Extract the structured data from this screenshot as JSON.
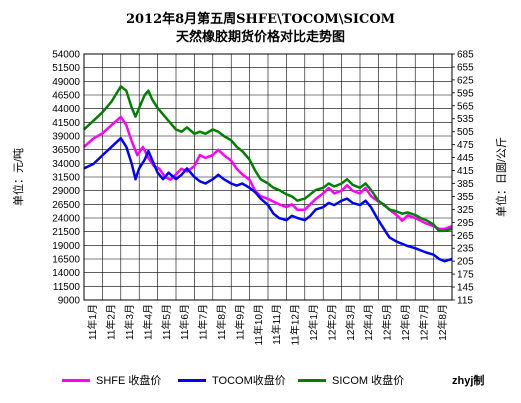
{
  "chart_data": {
    "type": "line",
    "title": "2012年8月第五周SHFE\\TOCOM\\SICOM",
    "subtitle": "天然橡胶期货价格对比走势图",
    "ylabel_left": "单位：元/吨",
    "ylabel_right": "单位：日圆/公斤",
    "ylim_left": [
      9000,
      54000
    ],
    "ylim_right": [
      115,
      685
    ],
    "yticks_left": [
      54000,
      51500,
      49000,
      46500,
      44000,
      41500,
      39000,
      36500,
      34000,
      31500,
      29000,
      26500,
      24000,
      21500,
      19000,
      16500,
      14000,
      11500,
      9000
    ],
    "yticks_right": [
      685,
      655,
      625,
      595,
      565,
      535,
      505,
      475,
      445,
      415,
      385,
      355,
      325,
      295,
      265,
      235,
      205,
      175,
      145,
      115
    ],
    "x_categories": [
      "11年1月",
      "11年2月",
      "11年3月",
      "11年4月",
      "11年5月",
      "11年6月",
      "11年7月",
      "11年8月",
      "11年9月",
      "11年10月",
      "11年11月",
      "11年12月",
      "12年1月",
      "12年2月",
      "12年3月",
      "12年4月",
      "12年5月",
      "12年6月",
      "12年7月",
      "12年8月"
    ],
    "grid": true,
    "legend_position": "bottom",
    "series": [
      {
        "name": "SHFE 收盘价",
        "color": "#ff00ff",
        "axis": "left",
        "points": [
          [
            0,
            37000
          ],
          [
            0.5,
            38500
          ],
          [
            1,
            39500
          ],
          [
            1.5,
            41000
          ],
          [
            2,
            42500
          ],
          [
            2.3,
            41000
          ],
          [
            2.6,
            38000
          ],
          [
            2.9,
            35500
          ],
          [
            3.2,
            37000
          ],
          [
            3.5,
            35000
          ],
          [
            3.8,
            33500
          ],
          [
            4.1,
            33000
          ],
          [
            4.4,
            31500
          ],
          [
            4.7,
            31000
          ],
          [
            5,
            32000
          ],
          [
            5.3,
            33000
          ],
          [
            5.6,
            32500
          ],
          [
            6,
            33500
          ],
          [
            6.3,
            35500
          ],
          [
            6.6,
            35000
          ],
          [
            7,
            35500
          ],
          [
            7.3,
            36500
          ],
          [
            7.6,
            35500
          ],
          [
            8,
            34500
          ],
          [
            8.3,
            33000
          ],
          [
            8.6,
            32000
          ],
          [
            9,
            31000
          ],
          [
            9.3,
            29000
          ],
          [
            9.6,
            28000
          ],
          [
            10,
            27500
          ],
          [
            10.3,
            27000
          ],
          [
            10.6,
            26500
          ],
          [
            11,
            26000
          ],
          [
            11.3,
            26500
          ],
          [
            11.6,
            25500
          ],
          [
            12,
            25500
          ],
          [
            12.3,
            26500
          ],
          [
            12.6,
            27500
          ],
          [
            13,
            28500
          ],
          [
            13.3,
            29500
          ],
          [
            13.6,
            28500
          ],
          [
            14,
            29000
          ],
          [
            14.3,
            30000
          ],
          [
            14.6,
            29000
          ],
          [
            15,
            28500
          ],
          [
            15.3,
            29500
          ],
          [
            15.6,
            28000
          ],
          [
            16,
            27000
          ],
          [
            16.3,
            26500
          ],
          [
            16.6,
            25500
          ],
          [
            17,
            24500
          ],
          [
            17.3,
            23500
          ],
          [
            17.6,
            24500
          ],
          [
            18,
            24000
          ],
          [
            18.3,
            23500
          ],
          [
            18.6,
            23000
          ],
          [
            19,
            22500
          ],
          [
            19.3,
            22000
          ],
          [
            19.6,
            22000
          ],
          [
            20,
            22500
          ]
        ]
      },
      {
        "name": "TOCOM收盘价",
        "color": "#0000ff",
        "axis": "right",
        "points": [
          [
            0,
            420
          ],
          [
            0.5,
            430
          ],
          [
            1,
            450
          ],
          [
            1.5,
            470
          ],
          [
            2,
            490
          ],
          [
            2.3,
            470
          ],
          [
            2.6,
            430
          ],
          [
            2.8,
            395
          ],
          [
            3,
            420
          ],
          [
            3.3,
            440
          ],
          [
            3.5,
            460
          ],
          [
            3.7,
            440
          ],
          [
            4,
            410
          ],
          [
            4.3,
            395
          ],
          [
            4.6,
            410
          ],
          [
            5,
            395
          ],
          [
            5.3,
            405
          ],
          [
            5.6,
            420
          ],
          [
            6,
            400
          ],
          [
            6.3,
            390
          ],
          [
            6.6,
            385
          ],
          [
            7,
            395
          ],
          [
            7.3,
            405
          ],
          [
            7.6,
            395
          ],
          [
            8,
            385
          ],
          [
            8.3,
            380
          ],
          [
            8.6,
            385
          ],
          [
            9,
            375
          ],
          [
            9.3,
            365
          ],
          [
            9.6,
            350
          ],
          [
            10,
            335
          ],
          [
            10.3,
            315
          ],
          [
            10.6,
            305
          ],
          [
            11,
            300
          ],
          [
            11.3,
            310
          ],
          [
            11.6,
            305
          ],
          [
            12,
            300
          ],
          [
            12.3,
            310
          ],
          [
            12.6,
            325
          ],
          [
            13,
            330
          ],
          [
            13.3,
            340
          ],
          [
            13.6,
            335
          ],
          [
            14,
            345
          ],
          [
            14.3,
            350
          ],
          [
            14.6,
            340
          ],
          [
            15,
            335
          ],
          [
            15.3,
            345
          ],
          [
            15.6,
            330
          ],
          [
            16,
            300
          ],
          [
            16.3,
            280
          ],
          [
            16.6,
            260
          ],
          [
            17,
            250
          ],
          [
            17.3,
            245
          ],
          [
            17.6,
            240
          ],
          [
            18,
            235
          ],
          [
            18.3,
            230
          ],
          [
            18.6,
            225
          ],
          [
            19,
            220
          ],
          [
            19.3,
            210
          ],
          [
            19.6,
            205
          ],
          [
            20,
            210
          ]
        ]
      },
      {
        "name": "SICOM 收盘价",
        "color": "#008000",
        "axis": "right",
        "points": [
          [
            0,
            510
          ],
          [
            0.5,
            530
          ],
          [
            1,
            550
          ],
          [
            1.5,
            575
          ],
          [
            2,
            610
          ],
          [
            2.3,
            600
          ],
          [
            2.6,
            560
          ],
          [
            2.8,
            540
          ],
          [
            3,
            560
          ],
          [
            3.3,
            590
          ],
          [
            3.5,
            600
          ],
          [
            3.7,
            580
          ],
          [
            4,
            560
          ],
          [
            4.3,
            545
          ],
          [
            4.6,
            530
          ],
          [
            5,
            510
          ],
          [
            5.3,
            505
          ],
          [
            5.6,
            515
          ],
          [
            6,
            500
          ],
          [
            6.3,
            505
          ],
          [
            6.6,
            500
          ],
          [
            7,
            510
          ],
          [
            7.3,
            505
          ],
          [
            7.6,
            495
          ],
          [
            8,
            485
          ],
          [
            8.3,
            470
          ],
          [
            8.6,
            460
          ],
          [
            9,
            440
          ],
          [
            9.3,
            415
          ],
          [
            9.6,
            395
          ],
          [
            10,
            385
          ],
          [
            10.3,
            375
          ],
          [
            10.6,
            370
          ],
          [
            11,
            360
          ],
          [
            11.3,
            355
          ],
          [
            11.6,
            345
          ],
          [
            12,
            350
          ],
          [
            12.3,
            360
          ],
          [
            12.6,
            370
          ],
          [
            13,
            375
          ],
          [
            13.3,
            385
          ],
          [
            13.6,
            378
          ],
          [
            14,
            385
          ],
          [
            14.3,
            395
          ],
          [
            14.6,
            382
          ],
          [
            15,
            375
          ],
          [
            15.3,
            385
          ],
          [
            15.6,
            370
          ],
          [
            16,
            345
          ],
          [
            16.3,
            335
          ],
          [
            16.6,
            325
          ],
          [
            17,
            320
          ],
          [
            17.3,
            315
          ],
          [
            17.6,
            318
          ],
          [
            18,
            312
          ],
          [
            18.3,
            305
          ],
          [
            18.6,
            300
          ],
          [
            19,
            290
          ],
          [
            19.3,
            275
          ],
          [
            19.6,
            275
          ],
          [
            20,
            280
          ]
        ]
      }
    ]
  },
  "credit": "zhyj制"
}
